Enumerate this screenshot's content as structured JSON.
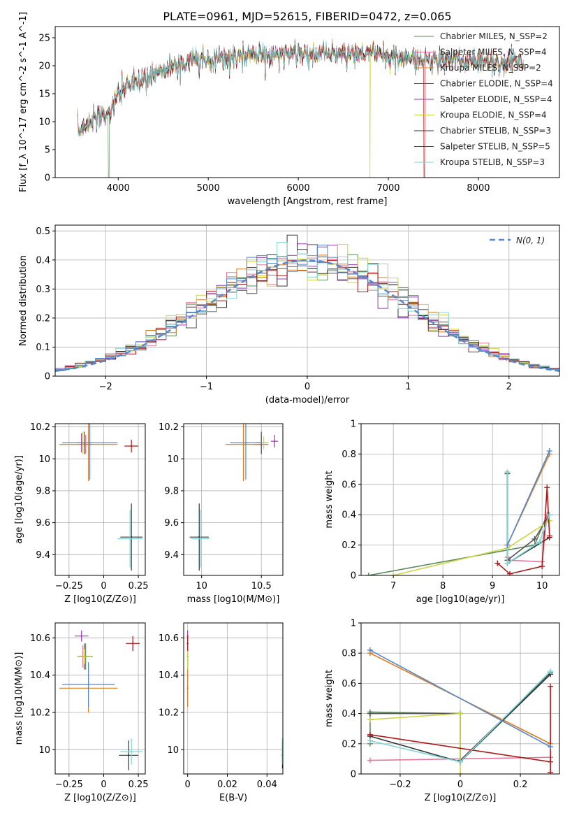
{
  "figure": {
    "title": "PLATE=0961, MJD=52615, FIBERID=0472, z=0.065"
  },
  "chart_data": [
    {
      "type": "line",
      "id": "spectrum",
      "xlabel": "wavelength [Angstrom, rest frame]",
      "ylabel": "Flux [f_λ 10^-17 erg cm^-2 s^-1 A^-1]",
      "xlim": [
        3300,
        8900
      ],
      "ylim": [
        0,
        27
      ],
      "xticks": [
        4000,
        5000,
        6000,
        7000,
        8000
      ],
      "yticks": [
        0,
        5,
        10,
        15,
        20,
        25
      ],
      "grid": false,
      "legend_placement": "right",
      "continuum_x": [
        3550,
        3700,
        3900,
        4000,
        4100,
        4300,
        4500,
        4700,
        4900,
        5100,
        5300,
        5500,
        5700,
        5900,
        6100,
        6300,
        6500,
        6700,
        6900,
        7100,
        7300,
        7500,
        7700,
        7900,
        8100,
        8300,
        8500
      ],
      "continuum_y": [
        8,
        10.5,
        11.5,
        15,
        16.5,
        17.5,
        19.5,
        20.5,
        21,
        21.3,
        21.5,
        21.7,
        22,
        22.2,
        22.3,
        22.2,
        22,
        22.2,
        21.8,
        21.5,
        21.3,
        21.2,
        21,
        20.8,
        20.7,
        20.6,
        20.5
      ],
      "series": [
        {
          "name": "Chabrier MILES, N_SSP=2",
          "color": "#5c8a5c"
        },
        {
          "name": "Salpeter MILES, N_SSP=4",
          "color": "#e8759a"
        },
        {
          "name": "Kroupa MILES, N_SSP=2",
          "color": "#e07b1a"
        },
        {
          "name": "Chabrier ELODIE, N_SSP=4",
          "color": "#555555"
        },
        {
          "name": "Salpeter ELODIE, N_SSP=4",
          "color": "#9a3ab5"
        },
        {
          "name": "Kroupa ELODIE, N_SSP=4",
          "color": "#c9d640"
        },
        {
          "name": "Chabrier STELIB, N_SSP=3",
          "color": "#333333"
        },
        {
          "name": "Salpeter STELIB, N_SSP=5",
          "color": "#b01818"
        },
        {
          "name": "Kroupa STELIB, N_SSP=3",
          "color": "#7fd6d6"
        }
      ]
    },
    {
      "type": "line",
      "id": "residuals",
      "xlabel": "(data-model)/error",
      "ylabel": "Normed distribution",
      "xlim": [
        -2.5,
        2.5
      ],
      "ylim": [
        0,
        0.52
      ],
      "xticks": [
        -2,
        -1,
        0,
        1,
        2
      ],
      "yticks": [
        0.0,
        0.1,
        0.2,
        0.3,
        0.4,
        0.5
      ],
      "grid": true,
      "legend_placement": "top-right",
      "gauss_label": "N(0, 1)",
      "gauss_color": "#5588cc",
      "bin_width": 0.1,
      "hist_colors": [
        "#5c8a5c",
        "#e8759a",
        "#e07b1a",
        "#555555",
        "#9a3ab5",
        "#c9d640",
        "#333333",
        "#b01818",
        "#7fd6d6",
        "#5588cc"
      ]
    },
    {
      "type": "scatter",
      "id": "age_vs_Z",
      "xlabel": "Z [log10(Z/Z⊙)]",
      "ylabel": "age [log10(age/yr)]",
      "xlim": [
        -0.35,
        0.3
      ],
      "ylim": [
        9.27,
        10.22
      ],
      "xticks": [
        -0.25,
        0.0,
        0.25
      ],
      "yticks": [
        9.4,
        9.6,
        9.8,
        10.0,
        10.2
      ],
      "grid": true,
      "points": [
        {
          "x": -0.13,
          "y": 10.09,
          "xerr": 0.05,
          "yerr": 0.05,
          "color": "#5c8a5c"
        },
        {
          "x": -0.13,
          "y": 10.09,
          "xerr": 0.04,
          "yerr": 0.06,
          "color": "#e8759a"
        },
        {
          "x": -0.11,
          "y": 10.09,
          "xerr": 0.21,
          "yerr": 0.23,
          "color": "#e07b1a"
        },
        {
          "x": -0.14,
          "y": 10.1,
          "xerr": 0.05,
          "yerr": 0.07,
          "color": "#555555"
        },
        {
          "x": -0.16,
          "y": 10.1,
          "xerr": 0.04,
          "yerr": 0.06,
          "color": "#9a3ab5"
        },
        {
          "x": -0.15,
          "y": 10.1,
          "xerr": 0.05,
          "yerr": 0.07,
          "color": "#c9d640"
        },
        {
          "x": 0.2,
          "y": 9.51,
          "xerr": 0.08,
          "yerr": 0.21,
          "color": "#333333"
        },
        {
          "x": 0.2,
          "y": 10.08,
          "xerr": 0.05,
          "yerr": 0.04,
          "color": "#b01818"
        },
        {
          "x": 0.19,
          "y": 9.5,
          "xerr": 0.09,
          "yerr": 0.18,
          "color": "#7fd6d6"
        },
        {
          "x": -0.1,
          "y": 10.1,
          "xerr": 0.2,
          "yerr": 0.23,
          "color": "#5588cc"
        }
      ]
    },
    {
      "type": "scatter",
      "id": "age_vs_mass",
      "xlabel": "mass [log10(M/M⊙)]",
      "ylabel": "",
      "xlim": [
        9.85,
        10.68
      ],
      "ylim": [
        9.27,
        10.22
      ],
      "xticks": [
        10.0,
        10.5
      ],
      "yticks": [
        9.4,
        9.6,
        9.8,
        10.0,
        10.2
      ],
      "grid": true,
      "points": [
        {
          "x": 10.5,
          "y": 10.09,
          "xerr": 0.06,
          "yerr": 0.05,
          "color": "#5c8a5c"
        },
        {
          "x": 10.5,
          "y": 10.09,
          "xerr": 0.05,
          "yerr": 0.06,
          "color": "#e8759a"
        },
        {
          "x": 10.35,
          "y": 10.09,
          "xerr": 0.15,
          "yerr": 0.23,
          "color": "#e07b1a"
        },
        {
          "x": 10.5,
          "y": 10.1,
          "xerr": 0.05,
          "yerr": 0.07,
          "color": "#555555"
        },
        {
          "x": 10.61,
          "y": 10.11,
          "xerr": 0.03,
          "yerr": 0.04,
          "color": "#9a3ab5"
        },
        {
          "x": 10.52,
          "y": 10.1,
          "xerr": 0.04,
          "yerr": 0.04,
          "color": "#c9d640"
        },
        {
          "x": 9.98,
          "y": 9.51,
          "xerr": 0.08,
          "yerr": 0.21,
          "color": "#333333"
        },
        {
          "x": 9.99,
          "y": 9.5,
          "xerr": 0.08,
          "yerr": 0.18,
          "color": "#7fd6d6"
        },
        {
          "x": 10.37,
          "y": 10.1,
          "xerr": 0.13,
          "yerr": 0.23,
          "color": "#5588cc"
        }
      ]
    },
    {
      "type": "line",
      "id": "massweight_vs_age",
      "xlabel": "age [log10(age/yr)]",
      "ylabel": "mass weight",
      "xlim": [
        6.35,
        10.35
      ],
      "ylim": [
        0,
        1
      ],
      "xticks": [
        7,
        8,
        9,
        10
      ],
      "yticks": [
        0.0,
        0.2,
        0.4,
        0.6,
        0.8,
        1.0
      ],
      "grid": true,
      "series": [
        {
          "color": "#5c8a5c",
          "x": [
            6.5,
            9.85,
            10.1
          ],
          "y": [
            0.0,
            0.2,
            0.4
          ]
        },
        {
          "color": "#e8759a",
          "x": [
            9.3,
            9.35,
            10.0,
            10.1
          ],
          "y": [
            0.12,
            0.1,
            0.09,
            0.4
          ]
        },
        {
          "color": "#e07b1a",
          "x": [
            9.3,
            10.15
          ],
          "y": [
            0.2,
            0.8
          ]
        },
        {
          "color": "#555555",
          "x": [
            9.3,
            9.3,
            9.85,
            10.15
          ],
          "y": [
            0.67,
            0.1,
            0.24,
            0.4
          ]
        },
        {
          "color": "#c9d640",
          "x": [
            7.0,
            9.3,
            10.15
          ],
          "y": [
            0.0,
            0.18,
            0.36
          ]
        },
        {
          "color": "#333333",
          "x": [
            9.3,
            9.3,
            10.15
          ],
          "y": [
            0.68,
            0.08,
            0.25
          ]
        },
        {
          "color": "#b01818",
          "x": [
            9.1,
            9.35,
            10.0,
            10.1,
            10.15
          ],
          "y": [
            0.08,
            0.01,
            0.06,
            0.58,
            0.26
          ]
        },
        {
          "color": "#7fd6d6",
          "x": [
            9.3,
            9.3,
            9.95,
            10.15
          ],
          "y": [
            0.68,
            0.08,
            0.22,
            0.4
          ]
        },
        {
          "color": "#5588cc",
          "x": [
            9.3,
            10.15
          ],
          "y": [
            0.2,
            0.82
          ]
        }
      ]
    },
    {
      "type": "scatter",
      "id": "mass_vs_Z",
      "xlabel": "Z [log10(Z/Z⊙)]",
      "ylabel": "mass [log10(M/M⊙)]",
      "xlim": [
        -0.35,
        0.3
      ],
      "ylim": [
        9.87,
        10.68
      ],
      "xticks": [
        -0.25,
        0.0,
        0.25
      ],
      "yticks": [
        10.0,
        10.2,
        10.4,
        10.6
      ],
      "grid": true,
      "points": [
        {
          "x": -0.13,
          "y": 10.5,
          "xerr": 0.05,
          "yerr": 0.07,
          "color": "#5c8a5c"
        },
        {
          "x": -0.15,
          "y": 10.5,
          "xerr": 0.04,
          "yerr": 0.06,
          "color": "#e8759a"
        },
        {
          "x": -0.11,
          "y": 10.33,
          "xerr": 0.21,
          "yerr": 0.13,
          "color": "#e07b1a"
        },
        {
          "x": -0.14,
          "y": 10.5,
          "xerr": 0.05,
          "yerr": 0.07,
          "color": "#555555"
        },
        {
          "x": -0.16,
          "y": 10.61,
          "xerr": 0.05,
          "yerr": 0.03,
          "color": "#9a3ab5"
        },
        {
          "x": -0.14,
          "y": 10.5,
          "xerr": 0.05,
          "yerr": 0.04,
          "color": "#c9d640"
        },
        {
          "x": 0.18,
          "y": 9.97,
          "xerr": 0.07,
          "yerr": 0.08,
          "color": "#333333"
        },
        {
          "x": 0.21,
          "y": 10.57,
          "xerr": 0.05,
          "yerr": 0.04,
          "color": "#b01818"
        },
        {
          "x": 0.2,
          "y": 9.99,
          "xerr": 0.08,
          "yerr": 0.07,
          "color": "#7fd6d6"
        },
        {
          "x": -0.11,
          "y": 10.35,
          "xerr": 0.19,
          "yerr": 0.12,
          "color": "#5588cc"
        }
      ]
    },
    {
      "type": "scatter",
      "id": "mass_vs_EBV",
      "xlabel": "E(B-V)",
      "ylabel": "",
      "xlim": [
        -0.002,
        0.048
      ],
      "ylim": [
        9.87,
        10.68
      ],
      "xticks": [
        0.0,
        0.02,
        0.04
      ],
      "yticks": [
        10.0,
        10.2,
        10.4,
        10.6
      ],
      "grid": true,
      "points": [
        {
          "x": 0.0,
          "y": 10.5,
          "xerr": 0.0,
          "yerr": 0.07,
          "color": "#5c8a5c"
        },
        {
          "x": 0.0,
          "y": 10.5,
          "xerr": 0.0,
          "yerr": 0.06,
          "color": "#e8759a"
        },
        {
          "x": 0.0,
          "y": 10.33,
          "xerr": 0.0,
          "yerr": 0.1,
          "color": "#e07b1a"
        },
        {
          "x": 0.0,
          "y": 10.61,
          "xerr": 0.0,
          "yerr": 0.03,
          "color": "#9a3ab5"
        },
        {
          "x": 0.0,
          "y": 10.48,
          "xerr": 0.0,
          "yerr": 0.05,
          "color": "#c9d640"
        },
        {
          "x": 0.0,
          "y": 10.57,
          "xerr": 0.0,
          "yerr": 0.04,
          "color": "#b01818"
        },
        {
          "x": 0.0478,
          "y": 9.97,
          "xerr": 0.0,
          "yerr": 0.07,
          "color": "#333333"
        },
        {
          "x": 0.0478,
          "y": 9.99,
          "xerr": 0.0,
          "yerr": 0.07,
          "color": "#7fd6d6"
        }
      ]
    },
    {
      "type": "line",
      "id": "massweight_vs_Z",
      "xlabel": "Z [log10(Z/Z⊙)]",
      "ylabel": "mass weight",
      "xlim": [
        -0.33,
        0.33
      ],
      "ylim": [
        0,
        1
      ],
      "xticks": [
        -0.2,
        0.0,
        0.2
      ],
      "yticks": [
        0.0,
        0.2,
        0.4,
        0.6,
        0.8,
        1.0
      ],
      "grid": true,
      "series": [
        {
          "color": "#5c8a5c",
          "x": [
            -0.3,
            -0.3,
            0.0
          ],
          "y": [
            0.2,
            0.41,
            0.4
          ]
        },
        {
          "color": "#e8759a",
          "x": [
            -0.3,
            0.3
          ],
          "y": [
            0.09,
            0.11
          ]
        },
        {
          "color": "#e07b1a",
          "x": [
            -0.3,
            0.3
          ],
          "y": [
            0.8,
            0.2
          ]
        },
        {
          "color": "#555555",
          "x": [
            -0.3,
            0.0,
            0.0,
            0.3
          ],
          "y": [
            0.4,
            0.4,
            0.09,
            0.67
          ]
        },
        {
          "color": "#c9d640",
          "x": [
            -0.3,
            0.0,
            0.0
          ],
          "y": [
            0.36,
            0.4,
            0.0
          ]
        },
        {
          "color": "#333333",
          "x": [
            -0.3,
            0.0,
            0.3
          ],
          "y": [
            0.25,
            0.08,
            0.66
          ]
        },
        {
          "color": "#b01818",
          "x": [
            -0.3,
            0.3,
            0.3,
            0.3
          ],
          "y": [
            0.26,
            0.08,
            0.58,
            0.01
          ]
        },
        {
          "color": "#7fd6d6",
          "x": [
            -0.3,
            0.0,
            0.3
          ],
          "y": [
            0.22,
            0.08,
            0.68
          ]
        },
        {
          "color": "#5588cc",
          "x": [
            -0.3,
            0.3
          ],
          "y": [
            0.82,
            0.18
          ]
        }
      ]
    }
  ]
}
